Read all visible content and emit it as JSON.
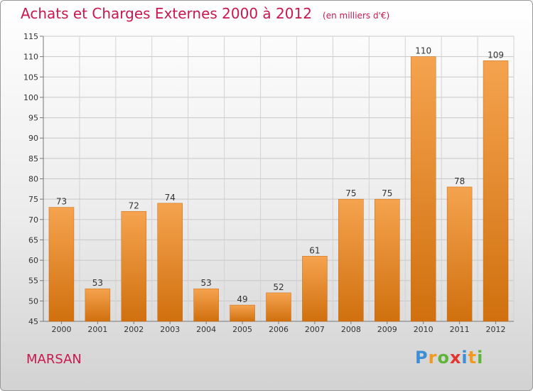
{
  "title": "Achats et Charges Externes 2000 à 2012",
  "unit_label": "(en milliers d'€)",
  "city": "MARSAN",
  "brand": {
    "letters": [
      "P",
      "r",
      "o",
      "x",
      "i",
      "t",
      "i"
    ],
    "colors": [
      "#3a8fd6",
      "#f39a1e",
      "#5fb53a",
      "#e2352d",
      "#3a8fd6",
      "#f39a1e",
      "#5fb53a"
    ]
  },
  "colors": {
    "bar_top": "#f5a34f",
    "bar_bottom": "#d0700e",
    "title": "#c8184e"
  },
  "chart_data": {
    "type": "bar",
    "categories": [
      "2000",
      "2001",
      "2002",
      "2003",
      "2004",
      "2005",
      "2006",
      "2007",
      "2008",
      "2009",
      "2010",
      "2011",
      "2012"
    ],
    "values": [
      73,
      53,
      72,
      74,
      53,
      49,
      52,
      61,
      75,
      75,
      110,
      78,
      109
    ],
    "ylim": [
      45,
      115
    ],
    "yticks": [
      45,
      50,
      55,
      60,
      65,
      70,
      75,
      80,
      85,
      90,
      95,
      100,
      105,
      110,
      115
    ],
    "grid": true,
    "xlabel": "",
    "ylabel": ""
  }
}
